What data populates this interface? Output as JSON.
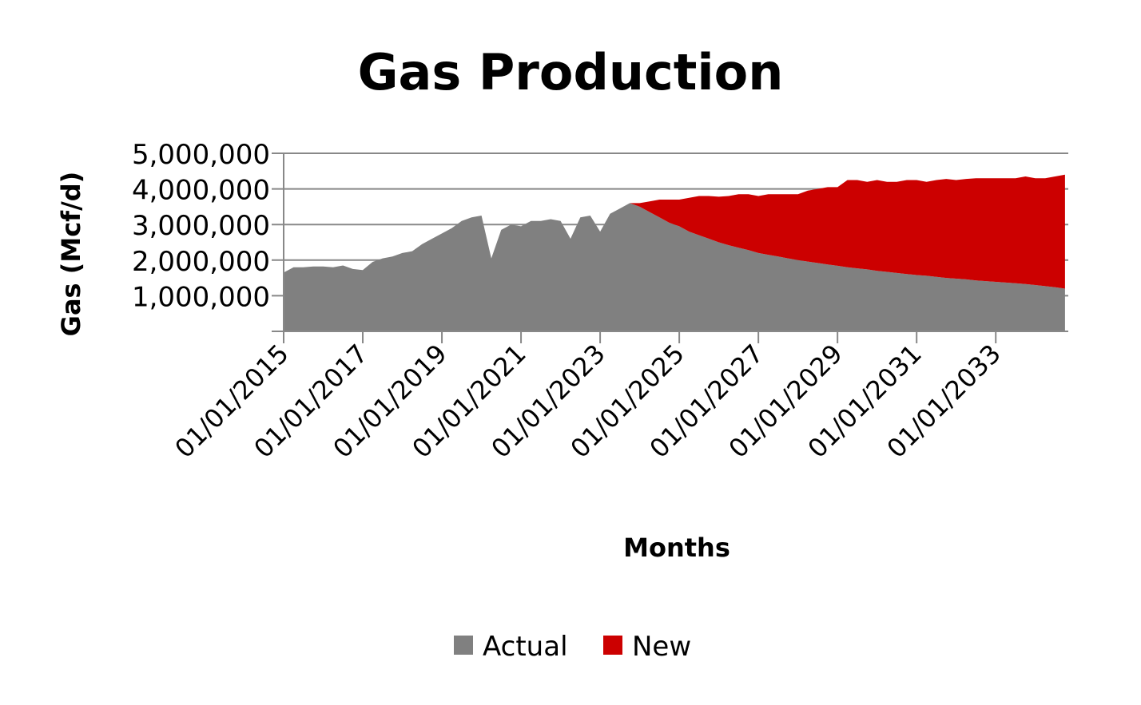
{
  "chart_data": {
    "type": "stacked-area",
    "title": "Gas Production",
    "x_label": "Months",
    "y_label": "Gas (Mcf/d)",
    "x": [
      "01/01/2015",
      "04/01/2015",
      "07/01/2015",
      "10/01/2015",
      "01/01/2016",
      "04/01/2016",
      "07/01/2016",
      "10/01/2016",
      "01/01/2017",
      "04/01/2017",
      "07/01/2017",
      "10/01/2017",
      "01/01/2018",
      "04/01/2018",
      "07/01/2018",
      "10/01/2018",
      "01/01/2019",
      "04/01/2019",
      "07/01/2019",
      "10/01/2019",
      "01/01/2020",
      "04/01/2020",
      "07/01/2020",
      "10/01/2020",
      "01/01/2021",
      "04/01/2021",
      "07/01/2021",
      "10/01/2021",
      "01/01/2022",
      "04/01/2022",
      "07/01/2022",
      "10/01/2022",
      "01/01/2023",
      "04/01/2023",
      "07/01/2023",
      "10/01/2023",
      "01/01/2024",
      "04/01/2024",
      "07/01/2024",
      "10/01/2024",
      "01/01/2025",
      "04/01/2025",
      "07/01/2025",
      "10/01/2025",
      "01/01/2026",
      "04/01/2026",
      "07/01/2026",
      "10/01/2026",
      "01/01/2027",
      "04/01/2027",
      "07/01/2027",
      "10/01/2027",
      "01/01/2028",
      "04/01/2028",
      "07/01/2028",
      "10/01/2028",
      "01/01/2029",
      "04/01/2029",
      "07/01/2029",
      "10/01/2029",
      "01/01/2030",
      "04/01/2030",
      "07/01/2030",
      "10/01/2030",
      "01/01/2031",
      "04/01/2031",
      "07/01/2031",
      "10/01/2031",
      "01/01/2032",
      "04/01/2032",
      "07/01/2032",
      "10/01/2032",
      "01/01/2033",
      "04/01/2033",
      "07/01/2033",
      "10/01/2033",
      "01/01/2034",
      "04/01/2034",
      "07/01/2034",
      "10/01/2034"
    ],
    "series": [
      {
        "name": "Actual",
        "color": "#808080",
        "values": [
          1650000,
          1800000,
          1800000,
          1820000,
          1820000,
          1800000,
          1850000,
          1750000,
          1720000,
          1950000,
          2050000,
          2100000,
          2200000,
          2250000,
          2450000,
          2600000,
          2750000,
          2900000,
          3100000,
          3200000,
          3250000,
          2050000,
          2850000,
          3000000,
          2950000,
          3100000,
          3100000,
          3150000,
          3100000,
          2600000,
          3200000,
          3250000,
          2800000,
          3300000,
          3450000,
          3600000,
          3500000,
          3350000,
          3200000,
          3050000,
          2950000,
          2800000,
          2700000,
          2600000,
          2500000,
          2420000,
          2350000,
          2280000,
          2200000,
          2150000,
          2100000,
          2050000,
          2000000,
          1960000,
          1920000,
          1880000,
          1840000,
          1800000,
          1770000,
          1740000,
          1700000,
          1670000,
          1640000,
          1610000,
          1580000,
          1560000,
          1530000,
          1500000,
          1480000,
          1460000,
          1430000,
          1410000,
          1390000,
          1370000,
          1350000,
          1330000,
          1300000,
          1270000,
          1240000,
          1200000
        ]
      },
      {
        "name": "New",
        "color": "#cc0000",
        "values": [
          0,
          0,
          0,
          0,
          0,
          0,
          0,
          0,
          0,
          0,
          0,
          0,
          0,
          0,
          0,
          0,
          0,
          0,
          0,
          0,
          0,
          0,
          0,
          0,
          0,
          0,
          0,
          0,
          0,
          0,
          0,
          0,
          0,
          0,
          0,
          0,
          100000,
          300000,
          500000,
          650000,
          750000,
          950000,
          1100000,
          1200000,
          1280000,
          1380000,
          1500000,
          1570000,
          1600000,
          1700000,
          1750000,
          1800000,
          1850000,
          1990000,
          2080000,
          2170000,
          2210000,
          2450000,
          2480000,
          2460000,
          2550000,
          2530000,
          2560000,
          2640000,
          2670000,
          2640000,
          2720000,
          2780000,
          2770000,
          2820000,
          2870000,
          2890000,
          2910000,
          2930000,
          2950000,
          3020000,
          3000000,
          3030000,
          3110000,
          3200000
        ]
      }
    ],
    "xlim": [
      "01/01/2015",
      "11/01/2034"
    ],
    "xticks": [
      "01/01/2015",
      "01/01/2017",
      "01/01/2019",
      "01/01/2021",
      "01/01/2023",
      "01/01/2025",
      "01/01/2027",
      "01/01/2029",
      "01/01/2031",
      "01/01/2033"
    ],
    "ylim": [
      0,
      5000000
    ],
    "yticks": [
      {
        "value": 1000000,
        "label": "1,000,000"
      },
      {
        "value": 2000000,
        "label": "2,000,000"
      },
      {
        "value": 3000000,
        "label": "3,000,000"
      },
      {
        "value": 4000000,
        "label": "4,000,000"
      },
      {
        "value": 5000000,
        "label": "5,000,000"
      }
    ],
    "grid": true
  }
}
